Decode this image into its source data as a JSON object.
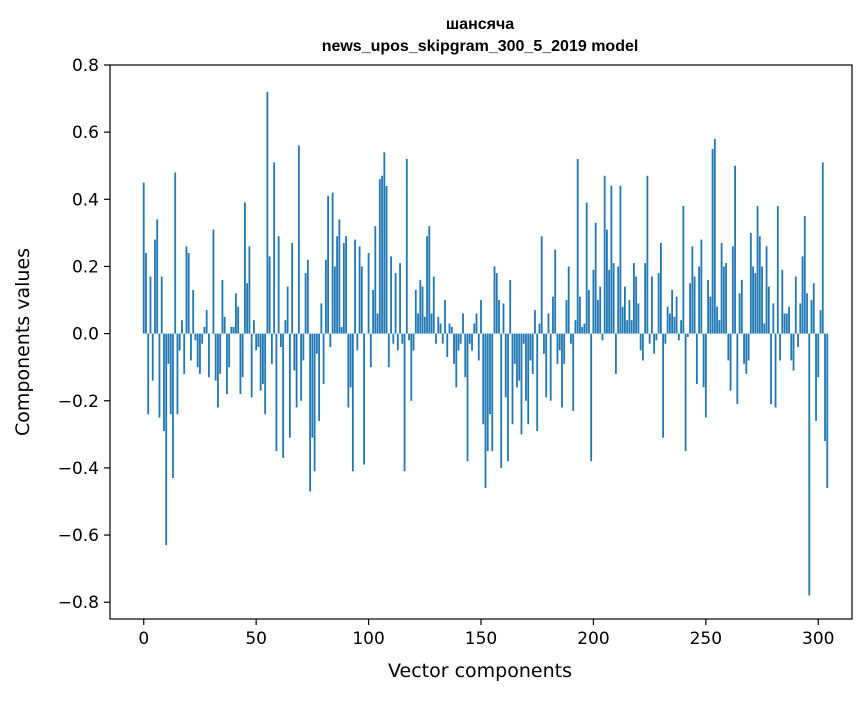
{
  "chart_data": {
    "type": "bar",
    "title_line1": "шансяча",
    "title_line2": "news_upos_skipgram_300_5_2019 model",
    "xlabel": "Vector components",
    "ylabel": "Components values",
    "xlim": [
      -15,
      315
    ],
    "ylim": [
      -0.85,
      0.8
    ],
    "xticks": [
      0,
      50,
      100,
      150,
      200,
      250,
      300
    ],
    "yticks": [
      -0.8,
      -0.6,
      -0.4,
      -0.2,
      0.0,
      0.2,
      0.4,
      0.6,
      0.8
    ],
    "ytick_labels": [
      "−0.8",
      "−0.6",
      "−0.4",
      "−0.2",
      "0.0",
      "0.2",
      "0.4",
      "0.6",
      "0.8"
    ],
    "xtick_labels": [
      "0",
      "50",
      "100",
      "150",
      "200",
      "250",
      "300"
    ],
    "grid": false,
    "bar_color": "#1f77b4",
    "series": [
      {
        "values": [
          0.45,
          0.24,
          -0.24,
          0.17,
          -0.14,
          0.28,
          0.34,
          -0.25,
          0.17,
          -0.29,
          -0.63,
          -0.09,
          -0.24,
          -0.43,
          0.48,
          -0.24,
          -0.05,
          0.04,
          -0.12,
          0.26,
          0.24,
          -0.08,
          0.13,
          -0.02,
          -0.1,
          -0.12,
          -0.03,
          0.02,
          0.07,
          -0.13,
          0.0,
          0.31,
          -0.14,
          -0.22,
          -0.12,
          0.16,
          0.05,
          -0.18,
          -0.1,
          0.02,
          0.02,
          0.12,
          0.08,
          -0.18,
          -0.13,
          0.39,
          0.15,
          0.26,
          -0.19,
          0.04,
          -0.05,
          -0.04,
          -0.17,
          -0.15,
          -0.24,
          0.72,
          0.23,
          -0.09,
          0.51,
          -0.35,
          0.29,
          -0.04,
          -0.37,
          0.04,
          0.14,
          -0.31,
          0.27,
          -0.11,
          -0.22,
          0.56,
          -0.2,
          -0.08,
          0.18,
          0.22,
          -0.47,
          -0.31,
          -0.41,
          -0.06,
          -0.26,
          0.09,
          -0.15,
          0.22,
          0.41,
          -0.04,
          0.42,
          0.2,
          0.29,
          0.34,
          0.02,
          0.27,
          0.29,
          -0.22,
          -0.16,
          -0.41,
          0.28,
          -0.05,
          0.26,
          0.2,
          -0.39,
          0.0,
          0.24,
          -0.1,
          0.13,
          0.32,
          0.06,
          0.46,
          0.47,
          0.54,
          0.44,
          -0.1,
          0.23,
          -0.03,
          0.18,
          -0.05,
          0.21,
          -0.03,
          -0.41,
          0.52,
          -0.02,
          -0.2,
          -0.05,
          0.13,
          0.06,
          0.16,
          0.14,
          0.05,
          0.29,
          0.32,
          0.06,
          0.17,
          -0.03,
          0.05,
          0.03,
          -0.03,
          0.1,
          -0.07,
          0.03,
          0.02,
          -0.09,
          -0.16,
          -0.05,
          -0.03,
          0.06,
          -0.13,
          -0.38,
          -0.03,
          -0.05,
          0.03,
          0.06,
          -0.08,
          0.1,
          -0.27,
          -0.46,
          -0.35,
          -0.24,
          -0.35,
          0.2,
          0.18,
          0.1,
          -0.4,
          0.09,
          -0.19,
          -0.38,
          0.16,
          -0.27,
          -0.09,
          -0.16,
          -0.14,
          -0.3,
          -0.03,
          -0.2,
          -0.27,
          -0.08,
          -0.12,
          0.07,
          -0.29,
          0.03,
          0.29,
          -0.06,
          -0.19,
          0.06,
          -0.2,
          0.11,
          0.25,
          -0.09,
          -0.05,
          -0.22,
          -0.09,
          0.1,
          0.2,
          -0.03,
          -0.23,
          0.04,
          0.52,
          0.11,
          0.02,
          0.03,
          0.39,
          0.13,
          -0.38,
          0.19,
          0.33,
          0.1,
          0.14,
          -0.02,
          0.47,
          0.31,
          0.19,
          0.44,
          0.21,
          -0.12,
          0.2,
          0.44,
          0.08,
          0.14,
          0.04,
          0.1,
          0.04,
          0.21,
          0.17,
          0.09,
          -0.05,
          -0.08,
          0.21,
          0.47,
          -0.03,
          0.17,
          -0.06,
          -0.02,
          0.18,
          0.27,
          -0.31,
          -0.03,
          0.08,
          0.06,
          0.13,
          0.05,
          0.11,
          -0.02,
          0.04,
          0.38,
          -0.35,
          -0.01,
          0.15,
          0.26,
          0.17,
          -0.15,
          0.2,
          0.28,
          -0.16,
          -0.25,
          0.16,
          0.11,
          0.55,
          0.58,
          0.08,
          0.04,
          0.27,
          0.2,
          0.21,
          -0.08,
          -0.17,
          0.26,
          0.5,
          -0.21,
          0.12,
          0.16,
          -0.09,
          -0.12,
          -0.08,
          0.3,
          0.2,
          0.18,
          0.38,
          0.29,
          0.2,
          0.03,
          0.26,
          0.14,
          -0.21,
          0.09,
          -0.22,
          0.38,
          -0.08,
          0.19,
          0.06,
          0.06,
          0.08,
          -0.08,
          -0.11,
          0.17,
          -0.04,
          0.09,
          0.23,
          0.35,
          0.12,
          -0.78,
          0.1,
          0.15,
          -0.26,
          -0.13,
          0.07,
          0.51,
          -0.32,
          -0.46
        ]
      }
    ]
  }
}
